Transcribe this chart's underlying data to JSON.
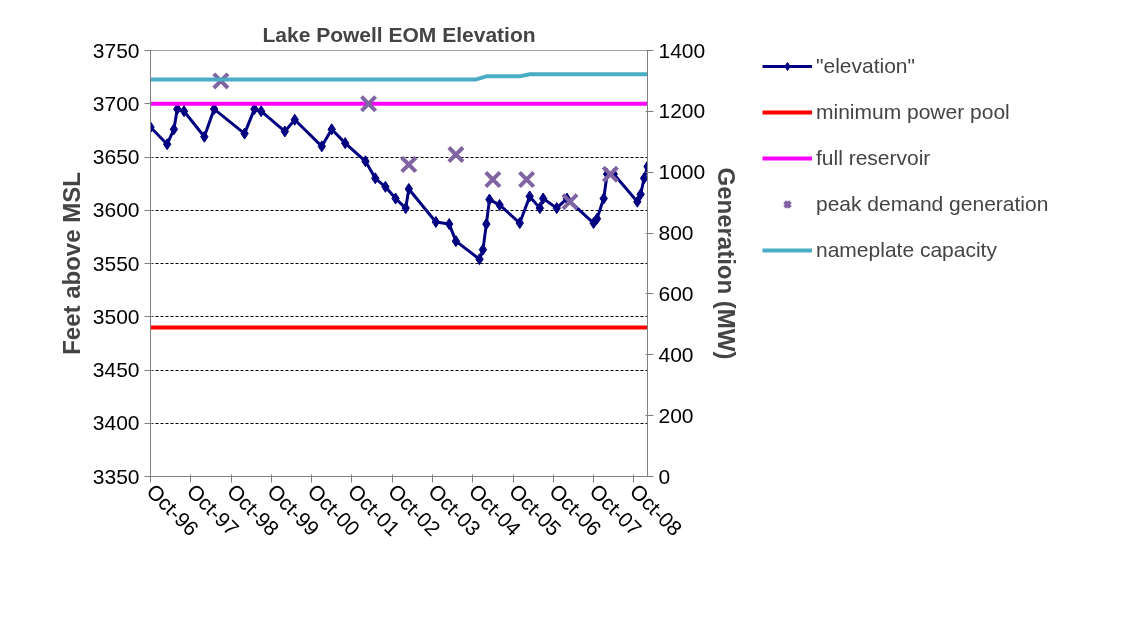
{
  "chart_data": {
    "type": "line",
    "title": "Lake Powell EOM Elevation",
    "ylabel": "Feet above MSL",
    "y2label": "Generation (MW)",
    "xlim": [
      "1996-10",
      "2009-02"
    ],
    "ylim": [
      3350,
      3750
    ],
    "yticks": [
      3350,
      3400,
      3450,
      3500,
      3550,
      3600,
      3650,
      3700,
      3750
    ],
    "y2lim": [
      0,
      1400
    ],
    "y2ticks": [
      0,
      200,
      400,
      600,
      800,
      1000,
      1200,
      1400
    ],
    "xticks": [
      {
        "value": "1996-10",
        "label": "Oct-96"
      },
      {
        "value": "1997-10",
        "label": "Oct-97"
      },
      {
        "value": "1998-10",
        "label": "Oct-98"
      },
      {
        "value": "1999-10",
        "label": "Oct-99"
      },
      {
        "value": "2000-10",
        "label": "Oct-00"
      },
      {
        "value": "2001-10",
        "label": "Oct-01"
      },
      {
        "value": "2002-10",
        "label": "Oct-02"
      },
      {
        "value": "2003-10",
        "label": "Oct-03"
      },
      {
        "value": "2004-10",
        "label": "Oct-04"
      },
      {
        "value": "2005-10",
        "label": "Oct-05"
      },
      {
        "value": "2006-10",
        "label": "Oct-06"
      },
      {
        "value": "2007-10",
        "label": "Oct-07"
      },
      {
        "value": "2008-10",
        "label": "Oct-08"
      }
    ],
    "grid": "y",
    "legend": "right",
    "series": [
      {
        "name": "\"elevation\"",
        "color": "#000080",
        "marker": "diamond",
        "x": [
          "1996-10",
          "1997-03",
          "1997-05",
          "1997-06",
          "1997-08",
          "1998-02",
          "1998-05",
          "1999-02",
          "1999-05",
          "1999-07",
          "2000-02",
          "2000-05",
          "2001-01",
          "2001-04",
          "2001-08",
          "2002-02",
          "2002-05",
          "2002-08",
          "2002-11",
          "2003-02",
          "2003-03",
          "2003-11",
          "2004-03",
          "2004-05",
          "2004-12",
          "2005-01",
          "2005-02",
          "2005-03",
          "2005-06",
          "2005-12",
          "2006-03",
          "2006-06",
          "2006-07",
          "2006-11",
          "2007-02",
          "2007-10",
          "2007-11",
          "2008-01",
          "2008-02",
          "2008-04",
          "2008-11",
          "2008-12",
          "2009-01",
          "2009-02"
        ],
        "values": [
          3678,
          3662,
          3676,
          3695,
          3693,
          3669,
          3695,
          3672,
          3695,
          3693,
          3674,
          3685,
          3660,
          3676,
          3663,
          3646,
          3630,
          3622,
          3611,
          3602,
          3620,
          3589,
          3587,
          3571,
          3554,
          3563,
          3587,
          3610,
          3605,
          3588,
          3613,
          3602,
          3611,
          3602,
          3611,
          3588,
          3592,
          3611,
          3634,
          3634,
          3608,
          3615,
          3630,
          3641
        ]
      },
      {
        "name": "minimum power pool",
        "color": "#ff0000",
        "marker": "none",
        "x": [
          "1996-10",
          "2009-02"
        ],
        "values": [
          3490,
          3490
        ]
      },
      {
        "name": "full reservoir",
        "color": "#ff00ff",
        "marker": "none",
        "x": [
          "1996-10",
          "2009-02"
        ],
        "values": [
          3700,
          3700
        ]
      },
      {
        "name": "peak demand generation",
        "type": "scatter",
        "color": "#8064a2",
        "marker": "cross",
        "axis": "y2",
        "x": [
          "1998-07",
          "2002-03",
          "2003-03",
          "2004-05",
          "2005-04",
          "2006-02",
          "2007-03",
          "2008-03"
        ],
        "values": [
          1300,
          1225,
          1025,
          1058,
          976,
          976,
          903,
          993
        ]
      },
      {
        "name": "nameplate capacity",
        "color": "#4bacc6",
        "marker": "none",
        "axis": "y2",
        "x": [
          "1996-10",
          "2004-11",
          "2005-02",
          "2005-12",
          "2006-03",
          "2009-02"
        ],
        "values": [
          1305,
          1305,
          1315,
          1315,
          1322,
          1322
        ]
      }
    ]
  }
}
